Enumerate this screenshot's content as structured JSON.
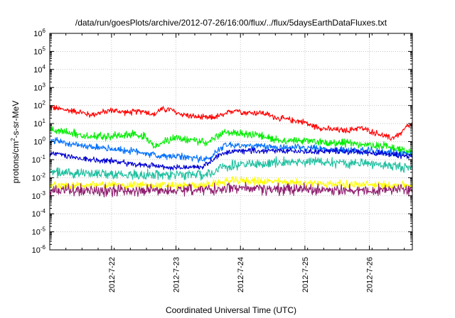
{
  "chart_data": {
    "type": "line",
    "title": "/data/run/goesPlots/archive/2012-07-26/16:00/flux/../flux/5daysEarthDataFluxes.txt",
    "xlabel": "Coordinated Universal Time (UTC)",
    "ylabel": {
      "prefix": "protons/cm",
      "sup": "2",
      "suffix": "-s-sr-MeV"
    },
    "y_scale": "log",
    "ylim": [
      1e-06,
      1000000.0
    ],
    "y_ticks": [
      {
        "mant": "10",
        "exp": "-6"
      },
      {
        "mant": "10",
        "exp": "-5"
      },
      {
        "mant": "10",
        "exp": "-4"
      },
      {
        "mant": "10",
        "exp": "-3"
      },
      {
        "mant": "10",
        "exp": "-2"
      },
      {
        "mant": "10",
        "exp": "-1"
      },
      {
        "mant": "10",
        "exp": "0"
      },
      {
        "mant": "10",
        "exp": "1"
      },
      {
        "mant": "10",
        "exp": "2"
      },
      {
        "mant": "10",
        "exp": "3"
      },
      {
        "mant": "10",
        "exp": "4"
      },
      {
        "mant": "10",
        "exp": "5"
      },
      {
        "mant": "10",
        "exp": "6"
      }
    ],
    "xlim": [
      "2012-07-21T01:00",
      "2012-07-26T16:00"
    ],
    "x_ticks": [
      "2012-7-22",
      "2012-7-23",
      "2012-7-24",
      "2012-7-25",
      "2012-7-26"
    ],
    "x_tick_dates": [
      "2012-07-22",
      "2012-07-23",
      "2012-07-24",
      "2012-07-25",
      "2012-07-26"
    ],
    "grid": true,
    "series": [
      {
        "color": "#ff0000",
        "noise": 0.15,
        "points": [
          [
            "2012-07-21T01:00",
            80
          ],
          [
            "2012-07-21T06:00",
            60
          ],
          [
            "2012-07-21T12:00",
            45
          ],
          [
            "2012-07-21T16:00",
            30
          ],
          [
            "2012-07-21T20:00",
            40
          ],
          [
            "2012-07-22T00:00",
            55
          ],
          [
            "2012-07-22T06:00",
            40
          ],
          [
            "2012-07-22T12:00",
            50
          ],
          [
            "2012-07-22T16:00",
            30
          ],
          [
            "2012-07-22T18:00",
            60
          ],
          [
            "2012-07-22T22:00",
            60
          ],
          [
            "2012-07-23T00:00",
            40
          ],
          [
            "2012-07-23T06:00",
            25
          ],
          [
            "2012-07-23T12:00",
            20
          ],
          [
            "2012-07-23T18:00",
            30
          ],
          [
            "2012-07-23T22:00",
            60
          ],
          [
            "2012-07-24T02:00",
            40
          ],
          [
            "2012-07-24T08:00",
            40
          ],
          [
            "2012-07-24T14:00",
            20
          ],
          [
            "2012-07-24T20:00",
            15
          ],
          [
            "2012-07-25T00:00",
            12
          ],
          [
            "2012-07-25T02:00",
            8
          ],
          [
            "2012-07-25T08:00",
            5
          ],
          [
            "2012-07-25T16:00",
            4
          ],
          [
            "2012-07-25T20:00",
            6
          ],
          [
            "2012-07-26T00:00",
            4
          ],
          [
            "2012-07-26T04:00",
            2.5
          ],
          [
            "2012-07-26T08:00",
            1.5
          ],
          [
            "2012-07-26T12:00",
            3
          ],
          [
            "2012-07-26T14:00",
            7
          ],
          [
            "2012-07-26T16:00",
            9
          ]
        ]
      },
      {
        "color": "#00ee00",
        "noise": 0.2,
        "points": [
          [
            "2012-07-21T01:00",
            5
          ],
          [
            "2012-07-21T08:00",
            3
          ],
          [
            "2012-07-21T16:00",
            2
          ],
          [
            "2012-07-22T00:00",
            2
          ],
          [
            "2012-07-22T08:00",
            2.5
          ],
          [
            "2012-07-22T12:00",
            1.8
          ],
          [
            "2012-07-22T16:00",
            0.5
          ],
          [
            "2012-07-22T20:00",
            1
          ],
          [
            "2012-07-23T00:00",
            1.5
          ],
          [
            "2012-07-23T08:00",
            1
          ],
          [
            "2012-07-23T12:00",
            1
          ],
          [
            "2012-07-23T18:00",
            3
          ],
          [
            "2012-07-24T00:00",
            3
          ],
          [
            "2012-07-24T08:00",
            2
          ],
          [
            "2012-07-24T16:00",
            1.2
          ],
          [
            "2012-07-25T00:00",
            1.1
          ],
          [
            "2012-07-25T08:00",
            0.9
          ],
          [
            "2012-07-25T16:00",
            0.8
          ],
          [
            "2012-07-26T00:00",
            0.7
          ],
          [
            "2012-07-26T08:00",
            0.5
          ],
          [
            "2012-07-26T16:00",
            0.25
          ]
        ]
      },
      {
        "color": "#0070ff",
        "noise": 0.18,
        "points": [
          [
            "2012-07-21T01:00",
            1.2
          ],
          [
            "2012-07-21T12:00",
            0.6
          ],
          [
            "2012-07-22T00:00",
            0.4
          ],
          [
            "2012-07-22T12:00",
            0.25
          ],
          [
            "2012-07-22T18:00",
            0.15
          ],
          [
            "2012-07-23T00:00",
            0.15
          ],
          [
            "2012-07-23T08:00",
            0.12
          ],
          [
            "2012-07-23T12:00",
            0.1
          ],
          [
            "2012-07-23T18:00",
            0.7
          ],
          [
            "2012-07-24T00:00",
            0.6
          ],
          [
            "2012-07-24T12:00",
            0.5
          ],
          [
            "2012-07-25T00:00",
            0.45
          ],
          [
            "2012-07-25T12:00",
            0.35
          ],
          [
            "2012-07-26T00:00",
            0.3
          ],
          [
            "2012-07-26T16:00",
            0.2
          ]
        ]
      },
      {
        "color": "#0000d0",
        "noise": 0.15,
        "points": [
          [
            "2012-07-21T01:00",
            0.25
          ],
          [
            "2012-07-21T12:00",
            0.12
          ],
          [
            "2012-07-22T00:00",
            0.08
          ],
          [
            "2012-07-22T12:00",
            0.05
          ],
          [
            "2012-07-23T00:00",
            0.035
          ],
          [
            "2012-07-23T10:00",
            0.04
          ],
          [
            "2012-07-23T16:00",
            0.2
          ],
          [
            "2012-07-24T00:00",
            0.3
          ],
          [
            "2012-07-24T12:00",
            0.3
          ],
          [
            "2012-07-25T00:00",
            0.28
          ],
          [
            "2012-07-25T12:00",
            0.3
          ],
          [
            "2012-07-26T00:00",
            0.25
          ],
          [
            "2012-07-26T16:00",
            0.15
          ]
        ]
      },
      {
        "color": "#20c0a0",
        "noise": 0.25,
        "points": [
          [
            "2012-07-21T01:00",
            0.02
          ],
          [
            "2012-07-22T00:00",
            0.015
          ],
          [
            "2012-07-22T12:00",
            0.015
          ],
          [
            "2012-07-23T00:00",
            0.014
          ],
          [
            "2012-07-23T12:00",
            0.015
          ],
          [
            "2012-07-23T18:00",
            0.04
          ],
          [
            "2012-07-24T00:00",
            0.05
          ],
          [
            "2012-07-24T12:00",
            0.07
          ],
          [
            "2012-07-25T00:00",
            0.08
          ],
          [
            "2012-07-25T12:00",
            0.07
          ],
          [
            "2012-07-26T00:00",
            0.06
          ],
          [
            "2012-07-26T16:00",
            0.035
          ]
        ]
      },
      {
        "color": "#ffff00",
        "noise": 0.2,
        "points": [
          [
            "2012-07-21T01:00",
            0.004
          ],
          [
            "2012-07-22T00:00",
            0.004
          ],
          [
            "2012-07-23T00:00",
            0.0035
          ],
          [
            "2012-07-23T12:00",
            0.004
          ],
          [
            "2012-07-23T18:00",
            0.006
          ],
          [
            "2012-07-24T00:00",
            0.007
          ],
          [
            "2012-07-24T12:00",
            0.006
          ],
          [
            "2012-07-25T00:00",
            0.005
          ],
          [
            "2012-07-26T00:00",
            0.004
          ],
          [
            "2012-07-26T16:00",
            0.004
          ]
        ]
      },
      {
        "color": "#902070",
        "noise": 0.28,
        "points": [
          [
            "2012-07-21T01:00",
            0.002
          ],
          [
            "2012-07-22T00:00",
            0.002
          ],
          [
            "2012-07-23T00:00",
            0.002
          ],
          [
            "2012-07-23T18:00",
            0.0025
          ],
          [
            "2012-07-24T00:00",
            0.0025
          ],
          [
            "2012-07-25T00:00",
            0.0022
          ],
          [
            "2012-07-26T00:00",
            0.002
          ],
          [
            "2012-07-26T16:00",
            0.002
          ]
        ]
      }
    ]
  }
}
